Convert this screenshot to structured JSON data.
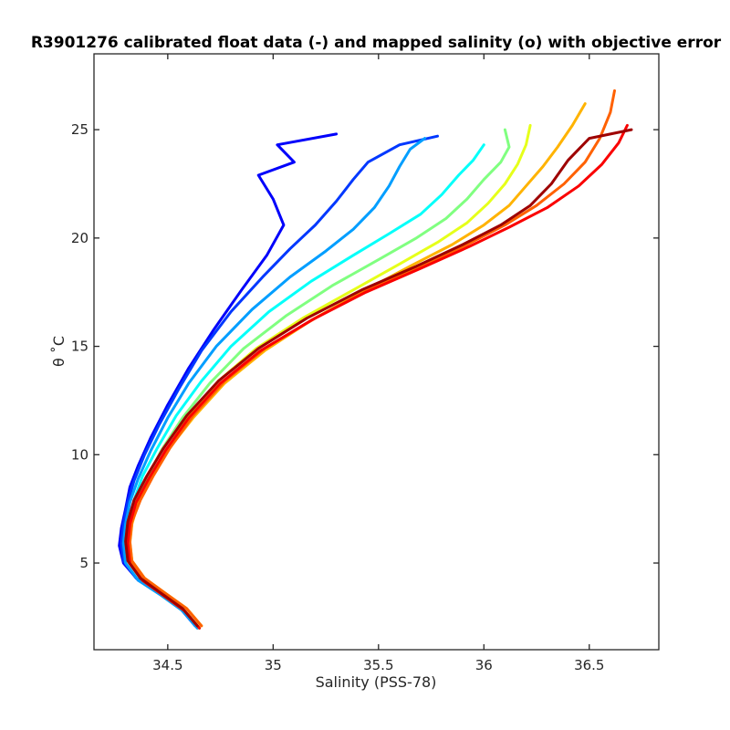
{
  "chart_data": {
    "type": "line",
    "title": "R3901276 calibrated float data (-) and mapped salinity (o) with objective error",
    "xlabel": "Salinity (PSS-78)",
    "ylabel": "θ ˚C",
    "xlim": [
      34.15,
      36.83
    ],
    "ylim": [
      1.0,
      28.5
    ],
    "xticks": [
      34.5,
      35,
      35.5,
      36,
      36.5
    ],
    "xtick_labels": [
      "34.5",
      "35",
      "35.5",
      "36",
      "36.5"
    ],
    "yticks": [
      5,
      10,
      15,
      20,
      25
    ],
    "ytick_labels": [
      "5",
      "10",
      "15",
      "20",
      "25"
    ],
    "grid": false,
    "legend": "none",
    "colormap": "jet",
    "colormap_stops": [
      "#00008f",
      "#0000ff",
      "#0080ff",
      "#00ffff",
      "#80ff80",
      "#ffff00",
      "#ff8000",
      "#ff0000",
      "#800000"
    ],
    "series": [
      {
        "color_fraction": 0.12,
        "points": [
          [
            34.65,
            2.0
          ],
          [
            34.58,
            2.8
          ],
          [
            34.48,
            3.5
          ],
          [
            34.36,
            4.2
          ],
          [
            34.29,
            5.0
          ],
          [
            34.27,
            5.8
          ],
          [
            34.28,
            6.6
          ],
          [
            34.3,
            7.5
          ],
          [
            34.32,
            8.5
          ],
          [
            34.36,
            9.5
          ],
          [
            34.42,
            10.8
          ],
          [
            34.5,
            12.3
          ],
          [
            34.6,
            14.0
          ],
          [
            34.72,
            15.8
          ],
          [
            34.85,
            17.6
          ],
          [
            34.97,
            19.2
          ],
          [
            35.05,
            20.6
          ],
          [
            35.0,
            21.8
          ],
          [
            34.93,
            22.9
          ],
          [
            35.1,
            23.5
          ],
          [
            35.02,
            24.3
          ],
          [
            35.3,
            24.8
          ]
        ]
      },
      {
        "color_fraction": 0.18,
        "points": [
          [
            34.63,
            2.1
          ],
          [
            34.56,
            2.9
          ],
          [
            34.46,
            3.6
          ],
          [
            34.35,
            4.3
          ],
          [
            34.29,
            5.1
          ],
          [
            34.28,
            5.9
          ],
          [
            34.29,
            6.8
          ],
          [
            34.31,
            7.8
          ],
          [
            34.34,
            8.8
          ],
          [
            34.39,
            10.0
          ],
          [
            34.46,
            11.4
          ],
          [
            34.55,
            13.0
          ],
          [
            34.66,
            14.8
          ],
          [
            34.8,
            16.6
          ],
          [
            34.95,
            18.2
          ],
          [
            35.08,
            19.5
          ],
          [
            35.2,
            20.6
          ],
          [
            35.3,
            21.7
          ],
          [
            35.38,
            22.7
          ],
          [
            35.45,
            23.5
          ],
          [
            35.6,
            24.3
          ],
          [
            35.78,
            24.7
          ]
        ]
      },
      {
        "color_fraction": 0.28,
        "points": [
          [
            34.64,
            2.0
          ],
          [
            34.57,
            2.8
          ],
          [
            34.47,
            3.5
          ],
          [
            34.36,
            4.2
          ],
          [
            34.3,
            5.0
          ],
          [
            34.29,
            5.9
          ],
          [
            34.3,
            6.8
          ],
          [
            34.32,
            7.8
          ],
          [
            34.36,
            8.9
          ],
          [
            34.42,
            10.2
          ],
          [
            34.5,
            11.7
          ],
          [
            34.6,
            13.3
          ],
          [
            34.73,
            15.0
          ],
          [
            34.9,
            16.7
          ],
          [
            35.08,
            18.2
          ],
          [
            35.25,
            19.4
          ],
          [
            35.38,
            20.4
          ],
          [
            35.48,
            21.4
          ],
          [
            35.55,
            22.4
          ],
          [
            35.6,
            23.3
          ],
          [
            35.65,
            24.1
          ],
          [
            35.72,
            24.6
          ]
        ]
      },
      {
        "color_fraction": 0.38,
        "points": [
          [
            34.64,
            2.1
          ],
          [
            34.57,
            2.9
          ],
          [
            34.47,
            3.6
          ],
          [
            34.37,
            4.3
          ],
          [
            34.31,
            5.1
          ],
          [
            34.3,
            6.0
          ],
          [
            34.31,
            6.9
          ],
          [
            34.34,
            7.9
          ],
          [
            34.38,
            9.0
          ],
          [
            34.45,
            10.3
          ],
          [
            34.54,
            11.8
          ],
          [
            34.66,
            13.4
          ],
          [
            34.8,
            15.0
          ],
          [
            34.98,
            16.6
          ],
          [
            35.18,
            18.0
          ],
          [
            35.38,
            19.2
          ],
          [
            35.55,
            20.2
          ],
          [
            35.7,
            21.1
          ],
          [
            35.8,
            22.0
          ],
          [
            35.88,
            22.9
          ],
          [
            35.95,
            23.6
          ],
          [
            36.0,
            24.3
          ]
        ]
      },
      {
        "color_fraction": 0.5,
        "points": [
          [
            34.65,
            2.0
          ],
          [
            34.58,
            2.8
          ],
          [
            34.48,
            3.5
          ],
          [
            34.38,
            4.2
          ],
          [
            34.32,
            5.0
          ],
          [
            34.31,
            5.9
          ],
          [
            34.32,
            6.8
          ],
          [
            34.35,
            7.8
          ],
          [
            34.4,
            8.9
          ],
          [
            34.47,
            10.2
          ],
          [
            34.57,
            11.7
          ],
          [
            34.7,
            13.3
          ],
          [
            34.86,
            14.9
          ],
          [
            35.06,
            16.4
          ],
          [
            35.28,
            17.8
          ],
          [
            35.5,
            19.0
          ],
          [
            35.68,
            20.0
          ],
          [
            35.82,
            20.9
          ],
          [
            35.92,
            21.8
          ],
          [
            36.0,
            22.7
          ],
          [
            36.08,
            23.5
          ],
          [
            36.12,
            24.2
          ],
          [
            36.1,
            25.0
          ]
        ]
      },
      {
        "color_fraction": 0.6,
        "points": [
          [
            34.66,
            2.1
          ],
          [
            34.59,
            2.9
          ],
          [
            34.49,
            3.6
          ],
          [
            34.39,
            4.3
          ],
          [
            34.33,
            5.1
          ],
          [
            34.32,
            6.0
          ],
          [
            34.33,
            6.9
          ],
          [
            34.36,
            7.9
          ],
          [
            34.42,
            9.0
          ],
          [
            34.5,
            10.3
          ],
          [
            34.6,
            11.8
          ],
          [
            34.74,
            13.4
          ],
          [
            34.92,
            14.9
          ],
          [
            35.14,
            16.3
          ],
          [
            35.38,
            17.6
          ],
          [
            35.6,
            18.8
          ],
          [
            35.78,
            19.8
          ],
          [
            35.92,
            20.7
          ],
          [
            36.02,
            21.6
          ],
          [
            36.1,
            22.5
          ],
          [
            36.16,
            23.4
          ],
          [
            36.2,
            24.3
          ],
          [
            36.22,
            25.2
          ]
        ]
      },
      {
        "color_fraction": 0.7,
        "points": [
          [
            34.65,
            2.0
          ],
          [
            34.58,
            2.8
          ],
          [
            34.48,
            3.5
          ],
          [
            34.39,
            4.2
          ],
          [
            34.33,
            5.0
          ],
          [
            34.32,
            5.9
          ],
          [
            34.33,
            6.8
          ],
          [
            34.36,
            7.8
          ],
          [
            34.42,
            8.9
          ],
          [
            34.5,
            10.2
          ],
          [
            34.62,
            11.7
          ],
          [
            34.77,
            13.3
          ],
          [
            34.96,
            14.8
          ],
          [
            35.18,
            16.2
          ],
          [
            35.42,
            17.5
          ],
          [
            35.65,
            18.7
          ],
          [
            35.85,
            19.7
          ],
          [
            36.0,
            20.6
          ],
          [
            36.12,
            21.5
          ],
          [
            36.2,
            22.4
          ],
          [
            36.28,
            23.3
          ],
          [
            36.35,
            24.2
          ],
          [
            36.42,
            25.2
          ],
          [
            36.48,
            26.2
          ]
        ]
      },
      {
        "color_fraction": 0.78,
        "points": [
          [
            34.66,
            2.1
          ],
          [
            34.59,
            2.9
          ],
          [
            34.49,
            3.6
          ],
          [
            34.39,
            4.3
          ],
          [
            34.33,
            5.1
          ],
          [
            34.32,
            6.0
          ],
          [
            34.33,
            6.9
          ],
          [
            34.37,
            7.9
          ],
          [
            34.43,
            9.0
          ],
          [
            34.51,
            10.3
          ],
          [
            34.62,
            11.8
          ],
          [
            34.77,
            13.4
          ],
          [
            34.96,
            14.9
          ],
          [
            35.2,
            16.3
          ],
          [
            35.45,
            17.6
          ],
          [
            35.7,
            18.7
          ],
          [
            35.92,
            19.7
          ],
          [
            36.1,
            20.6
          ],
          [
            36.25,
            21.5
          ],
          [
            36.38,
            22.5
          ],
          [
            36.48,
            23.5
          ],
          [
            36.55,
            24.6
          ],
          [
            36.6,
            25.8
          ],
          [
            36.62,
            26.8
          ]
        ]
      },
      {
        "color_fraction": 0.88,
        "points": [
          [
            34.65,
            2.0
          ],
          [
            34.58,
            2.8
          ],
          [
            34.48,
            3.5
          ],
          [
            34.38,
            4.2
          ],
          [
            34.32,
            5.0
          ],
          [
            34.31,
            5.9
          ],
          [
            34.32,
            6.8
          ],
          [
            34.35,
            7.8
          ],
          [
            34.41,
            8.9
          ],
          [
            34.49,
            10.2
          ],
          [
            34.6,
            11.7
          ],
          [
            34.75,
            13.3
          ],
          [
            34.94,
            14.8
          ],
          [
            35.18,
            16.2
          ],
          [
            35.44,
            17.5
          ],
          [
            35.7,
            18.6
          ],
          [
            35.93,
            19.6
          ],
          [
            36.12,
            20.5
          ],
          [
            36.3,
            21.4
          ],
          [
            36.45,
            22.4
          ],
          [
            36.56,
            23.4
          ],
          [
            36.64,
            24.4
          ],
          [
            36.68,
            25.2
          ]
        ]
      },
      {
        "color_fraction": 0.97,
        "points": [
          [
            34.64,
            2.1
          ],
          [
            34.57,
            2.9
          ],
          [
            34.47,
            3.6
          ],
          [
            34.37,
            4.3
          ],
          [
            34.31,
            5.1
          ],
          [
            34.3,
            6.0
          ],
          [
            34.31,
            6.9
          ],
          [
            34.34,
            7.9
          ],
          [
            34.4,
            9.0
          ],
          [
            34.48,
            10.3
          ],
          [
            34.59,
            11.8
          ],
          [
            34.74,
            13.4
          ],
          [
            34.93,
            14.9
          ],
          [
            35.16,
            16.3
          ],
          [
            35.42,
            17.6
          ],
          [
            35.68,
            18.7
          ],
          [
            35.9,
            19.7
          ],
          [
            36.08,
            20.6
          ],
          [
            36.22,
            21.5
          ],
          [
            36.32,
            22.5
          ],
          [
            36.4,
            23.6
          ],
          [
            36.5,
            24.6
          ],
          [
            36.7,
            25.0
          ]
        ]
      }
    ]
  }
}
